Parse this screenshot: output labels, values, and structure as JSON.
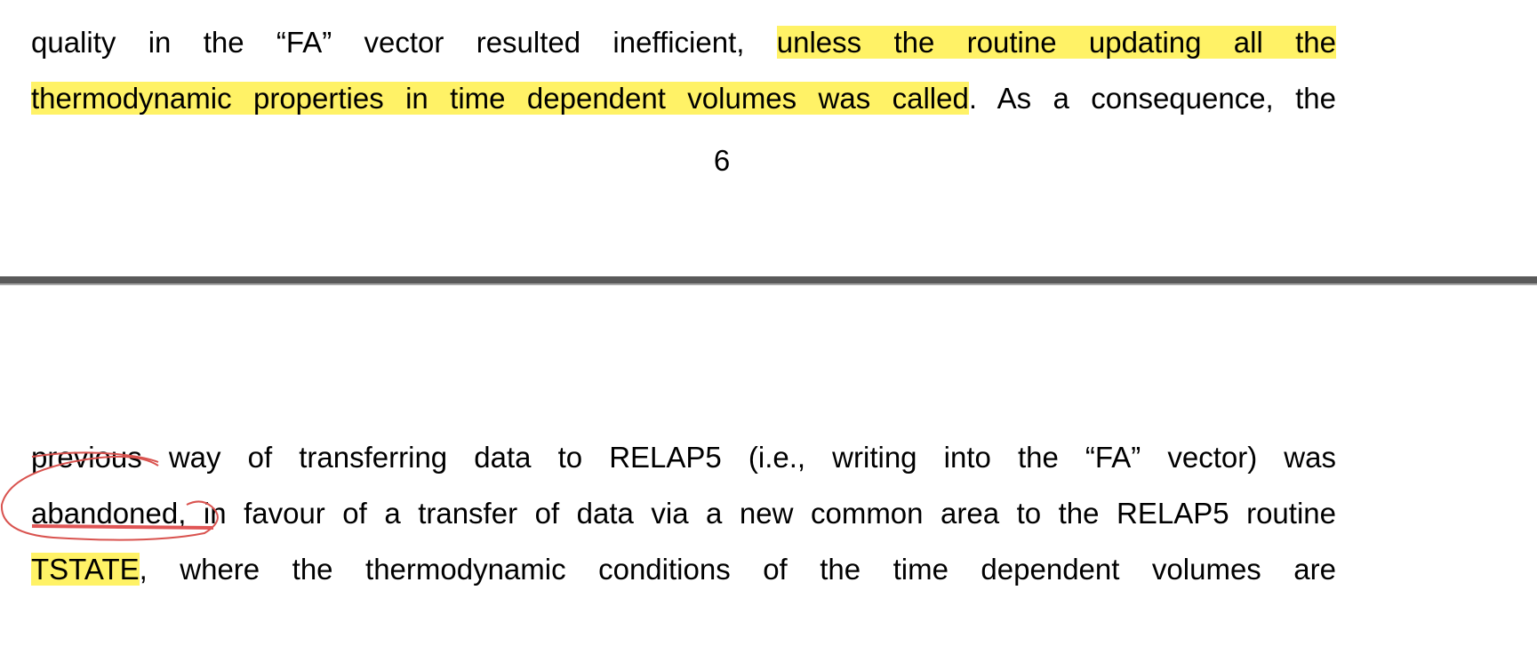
{
  "page_top": {
    "lines": [
      {
        "plain": "quality in the “FA” vector resulted inefficient,",
        "highlighted": "unless the routine updating all the"
      },
      {
        "highlighted": "thermodynamic properties in time dependent volumes was called",
        "plain": ". As a consequence, the"
      }
    ],
    "page_number": "6"
  },
  "page_bottom": {
    "lines": [
      {
        "struck": "previous",
        "plain": "way of transferring data to RELAP5 (i.e., writing into the “FA” vector) was"
      },
      {
        "circled": "abandoned",
        "plain": ", in favour of a transfer of data via a new common area to the RELAP5 routine"
      },
      {
        "highlighted": "TSTATE",
        "plain": ", where the thermodynamic conditions of the time dependent volumes are"
      }
    ]
  }
}
